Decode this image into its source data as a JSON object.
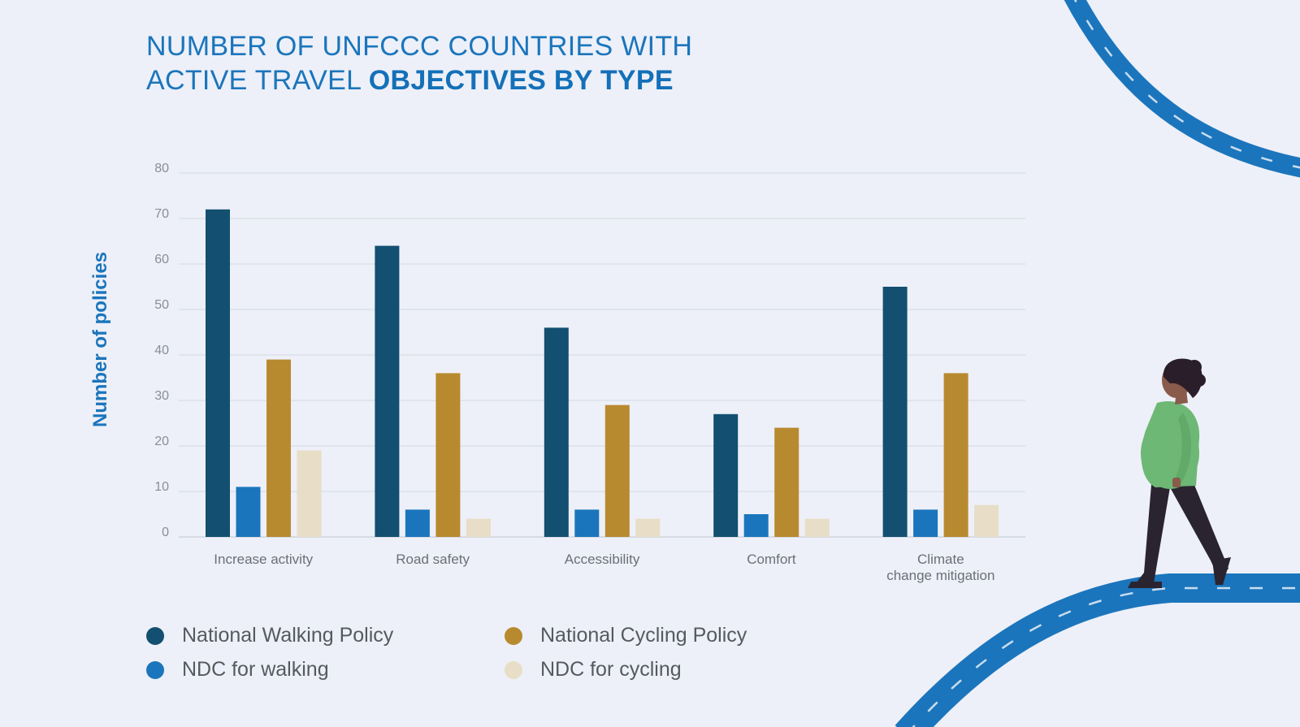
{
  "title": {
    "line1": "NUMBER OF UNFCCC COUNTRIES WITH",
    "line2_light": "ACTIVE TRAVEL ",
    "line2_bold": "OBJECTIVES BY TYPE"
  },
  "colors": {
    "national_walking": "#134f70",
    "ndc_walking": "#1b75bc",
    "national_cycling": "#b88a2f",
    "ndc_cycling": "#e8ddc6",
    "road": "#1b75bc",
    "background": "#edf0f8"
  },
  "chart_data": {
    "type": "bar",
    "title": "NUMBER OF UNFCCC COUNTRIES WITH ACTIVE TRAVEL OBJECTIVES BY TYPE",
    "xlabel": "",
    "ylabel": "Number of policies",
    "ylim": [
      0,
      80
    ],
    "yticks": [
      0,
      10,
      20,
      30,
      40,
      50,
      60,
      70,
      80
    ],
    "grid": true,
    "categories": [
      [
        "Increase activity"
      ],
      [
        "Road safety"
      ],
      [
        "Accessibility"
      ],
      [
        "Comfort"
      ],
      [
        "Climate",
        "change mitigation"
      ]
    ],
    "series": [
      {
        "name": "National Walking Policy",
        "color": "#134f70",
        "values": [
          72,
          64,
          46,
          27,
          55
        ]
      },
      {
        "name": "NDC for walking",
        "color": "#1b75bc",
        "values": [
          11,
          6,
          6,
          5,
          6
        ]
      },
      {
        "name": "National Cycling Policy",
        "color": "#b88a2f",
        "values": [
          39,
          36,
          29,
          24,
          36
        ]
      },
      {
        "name": "NDC for cycling",
        "color": "#e8ddc6",
        "values": [
          19,
          4,
          4,
          4,
          7
        ]
      }
    ]
  },
  "legend": {
    "items": [
      {
        "label": "National Walking Policy",
        "color": "#134f70"
      },
      {
        "label": "National Cycling Policy",
        "color": "#b88a2f"
      },
      {
        "label": "NDC for walking",
        "color": "#1b75bc"
      },
      {
        "label": "NDC for cycling",
        "color": "#e8ddc6"
      }
    ]
  }
}
